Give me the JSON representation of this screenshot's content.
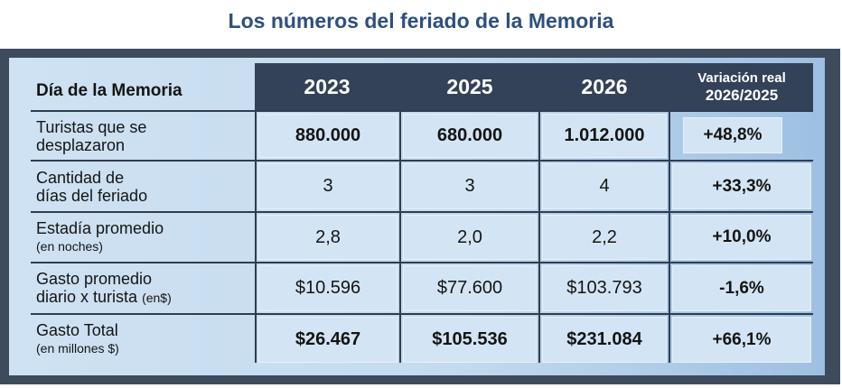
{
  "title": "Los números del feriado de la Memoria",
  "table": {
    "header_label": "Día de la Memoria",
    "years": [
      "2023",
      "2025",
      "2026"
    ],
    "variation_header_line1": "Variación real",
    "variation_header_line2": "2026/2025",
    "rows": [
      {
        "label_line1": "Turistas que se",
        "label_line2": "desplazaron",
        "label_suffix": "",
        "values": [
          "880.000",
          "680.000",
          "1.012.000"
        ],
        "variation": "+48,8%",
        "bold": true
      },
      {
        "label_line1": "Cantidad de",
        "label_line2": "días del feriado",
        "label_suffix": "",
        "values": [
          "3",
          "3",
          "4"
        ],
        "variation": "+33,3%",
        "bold": false
      },
      {
        "label_line1": "Estadía promedio",
        "label_line2": "(en noches)",
        "label_suffix": "",
        "values": [
          "2,8",
          "2,0",
          "2,2"
        ],
        "variation": "+10,0%",
        "bold": false
      },
      {
        "label_line1": "Gasto promedio",
        "label_line2": "diario x turista",
        "label_suffix": "(en$)",
        "values": [
          "$10.596",
          "$77.600",
          "$103.793"
        ],
        "variation": "-1,6%",
        "bold": false
      },
      {
        "label_line1": "Gasto Total",
        "label_line2": "(en millones $)",
        "label_suffix": "",
        "values": [
          "$26.467",
          "$105.536",
          "$231.084"
        ],
        "variation": "+66,1%",
        "bold": true
      }
    ]
  },
  "colors": {
    "title": "#2e4f7e",
    "frame": "#3d4b5d",
    "header_band": "#334259",
    "cell_bg": "#d3e5f5"
  }
}
